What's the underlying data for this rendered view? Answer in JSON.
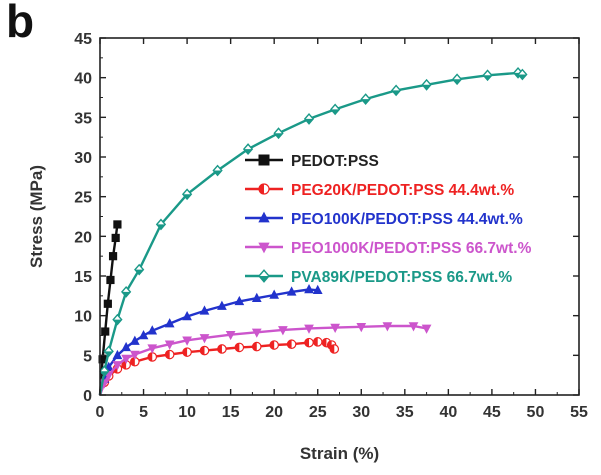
{
  "panel_label": "b",
  "chart_data": {
    "type": "line",
    "title": "",
    "xlabel": "Strain (%)",
    "ylabel": "Stress (MPa)",
    "xlim": [
      0,
      55
    ],
    "ylim": [
      0,
      45
    ],
    "xticks": [
      0,
      5,
      10,
      15,
      20,
      25,
      30,
      35,
      40,
      45,
      50,
      55
    ],
    "yticks": [
      0,
      5,
      10,
      15,
      20,
      25,
      30,
      35,
      40,
      45
    ],
    "grid": false,
    "legend_position": "center-right",
    "series": [
      {
        "name": "PEDOT:PSS",
        "color": "#111111",
        "marker": "square",
        "x": [
          0,
          0.3,
          0.6,
          0.9,
          1.2,
          1.5,
          1.8,
          2.0
        ],
        "y": [
          0,
          4.5,
          8.0,
          11.5,
          14.5,
          17.5,
          19.8,
          21.5
        ]
      },
      {
        "name": "PEG20K/PEDOT:PSS 44.4wt.%",
        "color": "#ee2222",
        "marker": "half-circle",
        "x": [
          0,
          0.5,
          1,
          2,
          3,
          4,
          6,
          8,
          10,
          12,
          14,
          16,
          18,
          20,
          22,
          24,
          25,
          26,
          26.6,
          26.9
        ],
        "y": [
          0,
          1.6,
          2.4,
          3.3,
          3.8,
          4.2,
          4.8,
          5.1,
          5.4,
          5.6,
          5.8,
          6.0,
          6.1,
          6.3,
          6.4,
          6.6,
          6.7,
          6.6,
          6.3,
          5.8
        ]
      },
      {
        "name": "PEO100K/PEDOT:PSS 44.4wt.%",
        "color": "#2233cc",
        "marker": "triangle-up",
        "x": [
          0,
          0.5,
          1,
          2,
          3,
          4,
          5,
          6,
          8,
          10,
          12,
          14,
          16,
          18,
          20,
          22,
          24,
          25
        ],
        "y": [
          0,
          2.0,
          3.5,
          5.0,
          6.0,
          6.8,
          7.5,
          8.1,
          9.0,
          9.9,
          10.6,
          11.2,
          11.8,
          12.2,
          12.6,
          13.0,
          13.3,
          13.2
        ]
      },
      {
        "name": "PEO1000K/PEDOT:PSS 66.7wt.%",
        "color": "#cc55cc",
        "marker": "triangle-down",
        "x": [
          0,
          0.5,
          1,
          2,
          3,
          4,
          6,
          8,
          10,
          12,
          15,
          18,
          21,
          24,
          27,
          30,
          33,
          36,
          37.5
        ],
        "y": [
          0,
          1.5,
          2.5,
          3.8,
          4.6,
          5.1,
          5.9,
          6.4,
          6.9,
          7.2,
          7.6,
          7.9,
          8.2,
          8.4,
          8.5,
          8.6,
          8.7,
          8.7,
          8.4
        ]
      },
      {
        "name": "PVA89K/PEDOT:PSS 66.7wt.%",
        "color": "#1a9988",
        "marker": "diamond",
        "x": [
          0,
          0.5,
          1,
          2,
          3,
          4.5,
          7,
          10,
          13.5,
          17,
          20.5,
          24,
          27,
          30.5,
          34,
          37.5,
          41,
          44.5,
          48,
          48.5
        ],
        "y": [
          0,
          3.0,
          5.5,
          9.5,
          13.0,
          15.8,
          21.5,
          25.3,
          28.3,
          31.0,
          33.0,
          34.8,
          36.0,
          37.3,
          38.4,
          39.1,
          39.8,
          40.3,
          40.6,
          40.4
        ]
      }
    ]
  }
}
